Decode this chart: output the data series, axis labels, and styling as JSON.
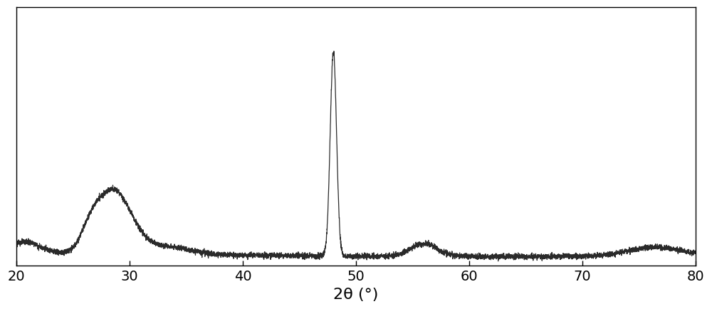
{
  "xlabel": "2θ (°)",
  "xlim": [
    20,
    80
  ],
  "ylim": [
    0,
    1.0
  ],
  "xticks": [
    20,
    30,
    40,
    50,
    60,
    70,
    80
  ],
  "line_color": "#2a2a2a",
  "line_width": 0.9,
  "background_color": "#ffffff",
  "xlabel_fontsize": 16,
  "xtick_fontsize": 14,
  "figure_width": 10.0,
  "figure_height": 4.35,
  "dpi": 100
}
